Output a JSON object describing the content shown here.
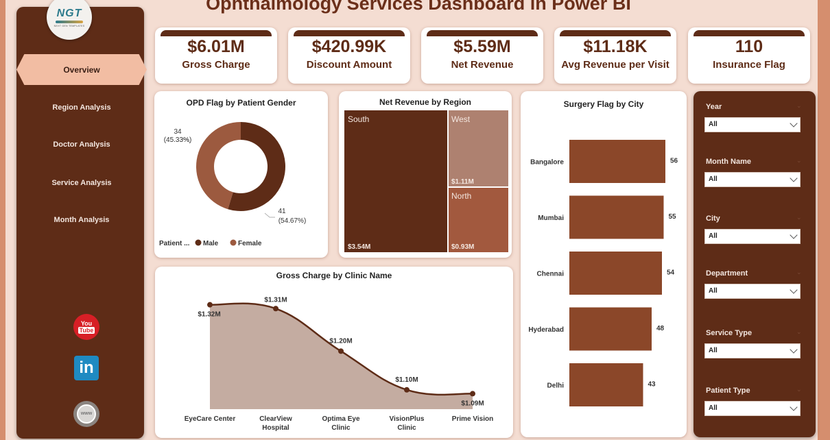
{
  "header": {
    "title": "Ophthalmology Services Dashboard in Power BI"
  },
  "logo": {
    "text": "NGT",
    "subtext": "NEXT GEN TEMPLATES"
  },
  "sidebar": {
    "active": "Overview",
    "items": [
      {
        "label": "Overview"
      },
      {
        "label": "Region Analysis"
      },
      {
        "label": "Doctor Analysis"
      },
      {
        "label": "Service Analysis"
      },
      {
        "label": "Month Analysis"
      }
    ],
    "social": {
      "youtube_top": "You",
      "youtube_bottom": "Tube",
      "linkedin": "in",
      "web": "www"
    }
  },
  "kpis": [
    {
      "value": "$6.01M",
      "label": "Gross Charge"
    },
    {
      "value": "$420.99K",
      "label": "Discount Amount"
    },
    {
      "value": "$5.59M",
      "label": "Net Revenue"
    },
    {
      "value": "$11.18K",
      "label": "Avg Revenue per Visit"
    },
    {
      "value": "110",
      "label": "Insurance Flag"
    }
  ],
  "filters": [
    {
      "label": "Year",
      "value": "All"
    },
    {
      "label": "Month Name",
      "value": "All"
    },
    {
      "label": "City",
      "value": "All"
    },
    {
      "label": "Department",
      "value": "All"
    },
    {
      "label": "Service Type",
      "value": "All"
    },
    {
      "label": "Patient Type",
      "value": "All"
    }
  ],
  "colors": {
    "dark_brown": "#5e2c17",
    "medium_brown": "#8b4729",
    "light_brown": "#a2593e",
    "tan": "#ae8170",
    "area_fill": "#c4aca1",
    "background": "#f4ddd2",
    "nav_active": "#f2bda3"
  },
  "chart_data": [
    {
      "id": "donut",
      "type": "pie",
      "title": "OPD Flag by Patient Gender",
      "legend_title": "Patient ...",
      "legend_position": "bottom-left",
      "slices": [
        {
          "name": "Male",
          "value": 41,
          "pct": "54.67%",
          "label_value": "41",
          "label_pct": "(54.67%)",
          "color": "#5e2c17"
        },
        {
          "name": "Female",
          "value": 34,
          "pct": "45.33%",
          "label_value": "34",
          "label_pct": "(45.33%)",
          "color": "#9c5a3f"
        }
      ]
    },
    {
      "id": "treemap",
      "type": "treemap",
      "title": "Net Revenue by Region",
      "items": [
        {
          "name": "South",
          "value": 3.54,
          "label": "$3.54M",
          "color": "#5e2c17"
        },
        {
          "name": "West",
          "value": 1.11,
          "label": "$1.11M",
          "color": "#ae8170"
        },
        {
          "name": "North",
          "value": 0.93,
          "label": "$0.93M",
          "color": "#a2593e"
        }
      ]
    },
    {
      "id": "bars",
      "type": "bar",
      "orientation": "horizontal",
      "title": "Surgery Flag by City",
      "categories": [
        "Bangalore",
        "Mumbai",
        "Chennai",
        "Hyderabad",
        "Delhi"
      ],
      "values": [
        56,
        55,
        54,
        48,
        43
      ],
      "labels": [
        "56",
        "55",
        "54",
        "48",
        "43"
      ],
      "xlim": [
        0,
        60
      ],
      "color": "#8b4729"
    },
    {
      "id": "area",
      "type": "area",
      "title": "Gross Charge by Clinic Name",
      "categories": [
        "EyeCare Center",
        "ClearView Hospital",
        "Optima Eye Clinic",
        "VisionPlus Clinic",
        "Prime Vision"
      ],
      "category_lines": [
        [
          "EyeCare Center"
        ],
        [
          "ClearView",
          "Hospital"
        ],
        [
          "Optima Eye",
          "Clinic"
        ],
        [
          "VisionPlus",
          "Clinic"
        ],
        [
          "Prime Vision"
        ]
      ],
      "values": [
        1.32,
        1.31,
        1.2,
        1.1,
        1.09
      ],
      "labels": [
        "$1.32M",
        "$1.31M",
        "$1.20M",
        "$1.10M",
        "$1.09M"
      ],
      "ylim": [
        1.05,
        1.33
      ],
      "line_color": "#5e2c17",
      "fill_color": "#c4aca1"
    }
  ]
}
